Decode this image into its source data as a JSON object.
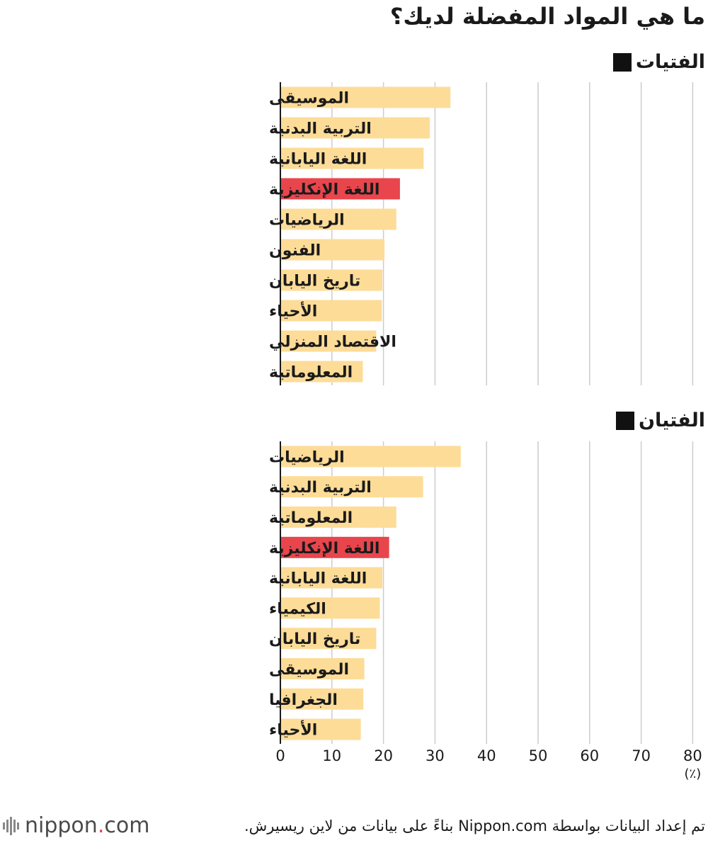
{
  "title": "ما هي المواد المفضلة لديك؟",
  "source": "تم إعداد البيانات بواسطة Nippon.com بناءً على بيانات من لاين ريسيرش.",
  "logo": {
    "word": "nippon",
    "dot": ".",
    "suffix": "com"
  },
  "colors": {
    "bar": "#fddc98",
    "highlight": "#e8454d",
    "grid": "#cccccc",
    "axis": "#1a1a1a"
  },
  "chart_data": [
    {
      "type": "bar",
      "orientation": "horizontal",
      "title": "الفتيات",
      "categories": [
        "الموسيقى",
        "التربية البدنية",
        "اللغة اليابانية",
        "اللغة الإنكليزية",
        "الرياضيات",
        "الفنون",
        "تاريخ اليابان",
        "الأحياء",
        "الاقتصاد المنزلي",
        "المعلوماتية"
      ],
      "values": [
        33,
        29,
        27.8,
        23.2,
        22.5,
        20.2,
        19.8,
        19.7,
        18.6,
        16
      ],
      "highlight": "اللغة الإنكليزية",
      "xlim": [
        0,
        80
      ],
      "grid": true
    },
    {
      "type": "bar",
      "orientation": "horizontal",
      "title": "الفتيان",
      "categories": [
        "الرياضيات",
        "التربية البدنية",
        "المعلوماتية",
        "اللغة الإنكليزية",
        "اللغة اليابانية",
        "الكيمياء",
        "تاريخ اليابان",
        "الموسيقى",
        "الجغرافيا",
        "الأحياء"
      ],
      "values": [
        35,
        27.7,
        22.5,
        21.1,
        19.8,
        19.3,
        18.6,
        16.3,
        16.1,
        15.6
      ],
      "highlight": "اللغة الإنكليزية",
      "xlim": [
        0,
        80
      ],
      "xticks": [
        0,
        10,
        20,
        30,
        40,
        50,
        60,
        70,
        80
      ],
      "xunit": "(٪)",
      "grid": true
    }
  ]
}
